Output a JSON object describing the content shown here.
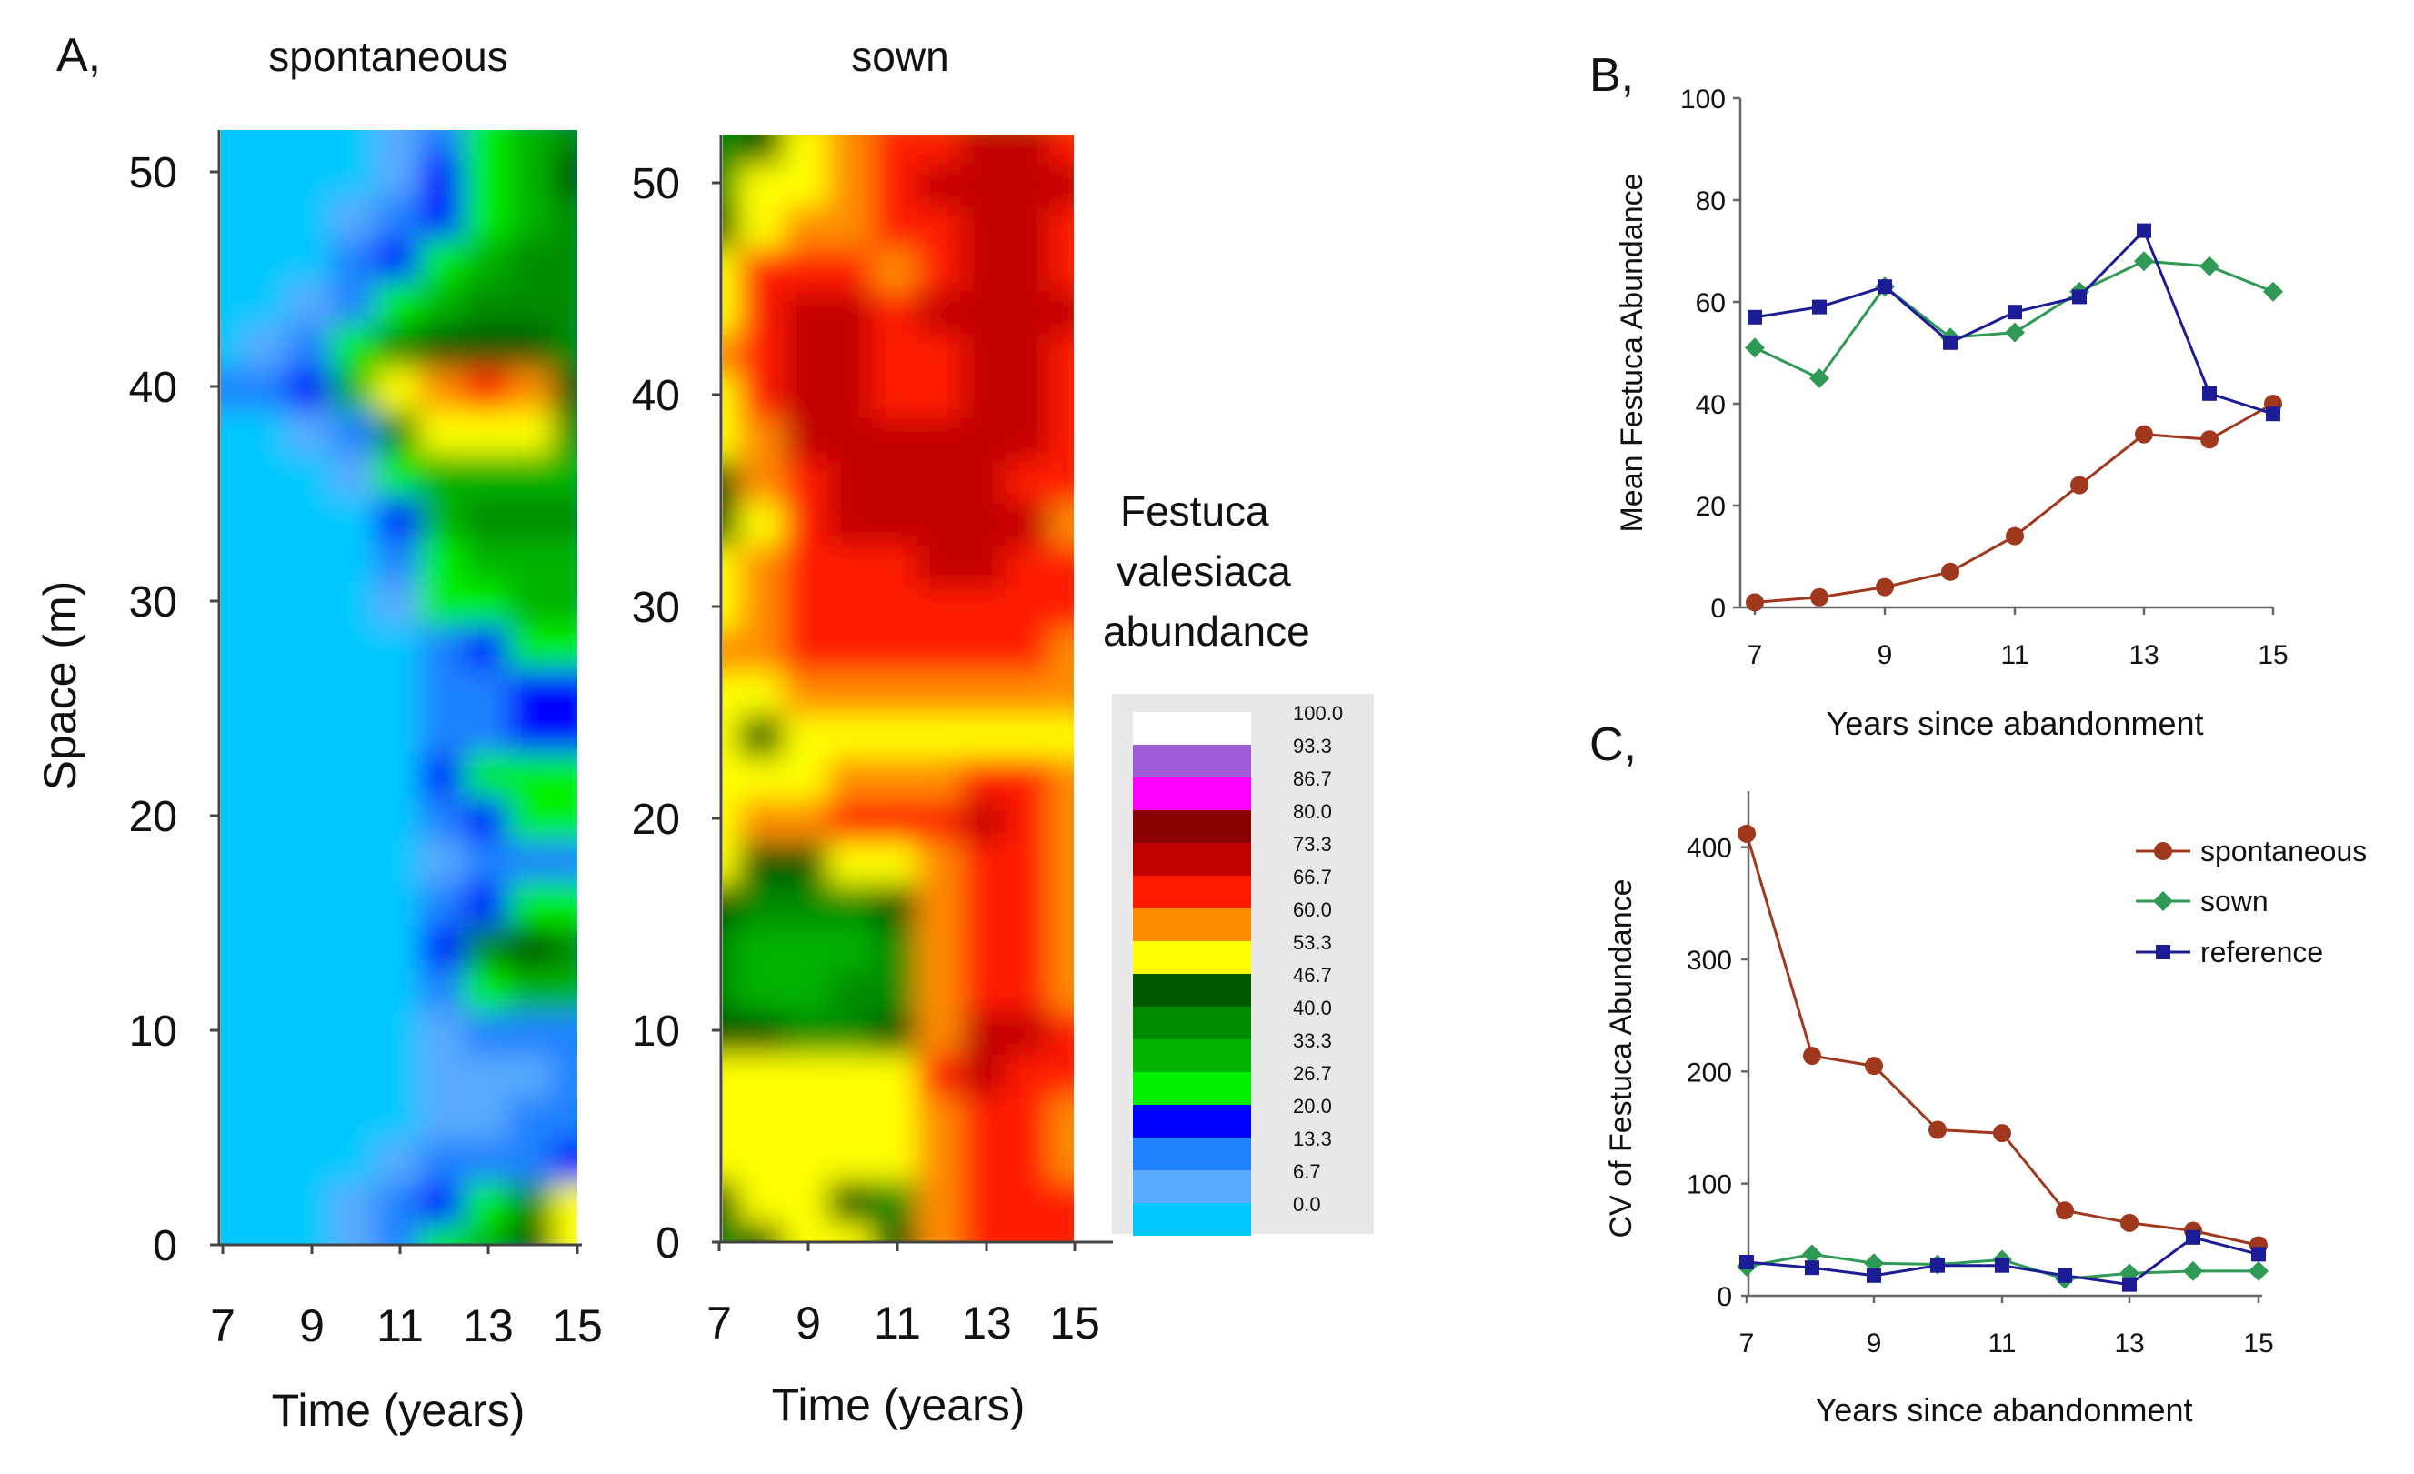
{
  "figure": {
    "panel_labels": {
      "a": "A,",
      "b": "B,",
      "c": "C,"
    },
    "heatmap_titles": {
      "spontaneous": "spontaneous",
      "sown": "sown"
    }
  },
  "colorbar": {
    "title_lines": [
      "Festuca",
      "valesiaca",
      "abundance"
    ],
    "ticks": [
      "100.0",
      "93.3",
      "86.7",
      "80.0",
      "73.3",
      "66.7",
      "60.0",
      "53.3",
      "46.7",
      "40.0",
      "33.3",
      "26.7",
      "20.0",
      "13.3",
      "6.7",
      "0.0"
    ],
    "colors": [
      "#ffffff",
      "#a05cd6",
      "#ff00ff",
      "#8b0000",
      "#c20000",
      "#ff1a00",
      "#ff8c00",
      "#ffff00",
      "#005a00",
      "#008c00",
      "#00b400",
      "#00f000",
      "#0000ff",
      "#1e82ff",
      "#5aaaff",
      "#00c8ff"
    ]
  },
  "chart_data": [
    {
      "type": "heatmap",
      "title": "spontaneous",
      "xlabel": "Time (years)",
      "ylabel": "Space (m)",
      "x_ticks": [
        "7",
        "9",
        "11",
        "13",
        "15"
      ],
      "y_ticks": [
        "0",
        "10",
        "20",
        "30",
        "40",
        "50"
      ],
      "xlim": [
        7,
        15
      ],
      "ylim": [
        0,
        52
      ],
      "value_range": [
        0,
        100
      ],
      "x": [
        7,
        8,
        9,
        10,
        11,
        12,
        13,
        14,
        15
      ],
      "y": [
        0,
        2,
        4,
        6,
        8,
        10,
        12,
        14,
        16,
        18,
        20,
        22,
        24,
        26,
        28,
        30,
        32,
        34,
        36,
        38,
        40,
        42,
        44,
        46,
        48,
        50,
        52
      ],
      "values": [
        [
          0,
          0,
          3,
          10,
          18,
          26,
          35,
          48,
          55
        ],
        [
          0,
          0,
          2,
          8,
          15,
          22,
          30,
          40,
          50
        ],
        [
          0,
          0,
          0,
          5,
          12,
          15,
          16,
          18,
          22
        ],
        [
          0,
          0,
          0,
          0,
          4,
          10,
          12,
          14,
          16
        ],
        [
          0,
          0,
          0,
          0,
          3,
          8,
          10,
          12,
          15
        ],
        [
          0,
          0,
          0,
          0,
          3,
          10,
          14,
          15,
          18
        ],
        [
          0,
          0,
          0,
          0,
          5,
          18,
          30,
          35,
          35
        ],
        [
          0,
          0,
          0,
          0,
          6,
          22,
          40,
          45,
          42
        ],
        [
          0,
          0,
          0,
          0,
          4,
          15,
          22,
          25,
          25
        ],
        [
          0,
          0,
          0,
          0,
          3,
          12,
          16,
          16,
          18
        ],
        [
          0,
          0,
          0,
          0,
          4,
          16,
          24,
          26,
          25
        ],
        [
          0,
          0,
          0,
          0,
          5,
          20,
          28,
          30,
          30
        ],
        [
          0,
          0,
          0,
          0,
          4,
          14,
          18,
          22,
          24
        ],
        [
          0,
          0,
          0,
          0,
          3,
          13,
          17,
          20,
          22
        ],
        [
          0,
          0,
          0,
          0,
          5,
          18,
          24,
          26,
          26
        ],
        [
          0,
          0,
          0,
          3,
          12,
          25,
          30,
          32,
          32
        ],
        [
          0,
          0,
          0,
          4,
          16,
          30,
          34,
          36,
          35
        ],
        [
          0,
          0,
          0,
          5,
          22,
          36,
          40,
          40,
          38
        ],
        [
          0,
          0,
          2,
          10,
          25,
          35,
          37,
          35,
          32
        ],
        [
          0,
          2,
          8,
          18,
          40,
          52,
          55,
          50,
          40
        ],
        [
          14,
          14,
          22,
          35,
          54,
          62,
          63,
          58,
          45
        ],
        [
          0,
          8,
          16,
          26,
          38,
          45,
          48,
          45,
          40
        ],
        [
          0,
          3,
          10,
          18,
          26,
          34,
          40,
          42,
          40
        ],
        [
          0,
          0,
          4,
          13,
          22,
          28,
          32,
          38,
          38
        ],
        [
          0,
          0,
          2,
          9,
          17,
          23,
          28,
          35,
          40
        ],
        [
          0,
          0,
          0,
          5,
          12,
          19,
          28,
          36,
          45
        ],
        [
          0,
          0,
          0,
          3,
          8,
          16,
          26,
          34,
          42
        ]
      ]
    },
    {
      "type": "heatmap",
      "title": "sown",
      "xlabel": "Time (years)",
      "x_ticks": [
        "7",
        "9",
        "11",
        "13",
        "15"
      ],
      "y_ticks": [
        "0",
        "10",
        "20",
        "30",
        "40",
        "50"
      ],
      "xlim": [
        7,
        15
      ],
      "ylim": [
        0,
        52
      ],
      "value_range": [
        0,
        100
      ],
      "x": [
        7,
        8,
        9,
        10,
        11,
        12,
        13,
        14,
        15
      ],
      "y": [
        0,
        2,
        4,
        6,
        8,
        10,
        12,
        14,
        16,
        18,
        20,
        22,
        24,
        26,
        28,
        30,
        32,
        34,
        36,
        38,
        40,
        42,
        44,
        46,
        48,
        50,
        52
      ],
      "values": [
        [
          42,
          48,
          52,
          50,
          46,
          62,
          65,
          64,
          66
        ],
        [
          44,
          50,
          52,
          48,
          43,
          60,
          66,
          66,
          64
        ],
        [
          50,
          52,
          55,
          54,
          52,
          62,
          67,
          66,
          62
        ],
        [
          50,
          50,
          55,
          54,
          55,
          62,
          68,
          67,
          62
        ],
        [
          52,
          50,
          52,
          53,
          53,
          64,
          70,
          68,
          64
        ],
        [
          46,
          44,
          40,
          42,
          46,
          62,
          70,
          70,
          66
        ],
        [
          42,
          37,
          36,
          38,
          42,
          60,
          68,
          68,
          62
        ],
        [
          42,
          36,
          35,
          37,
          42,
          58,
          66,
          66,
          58
        ],
        [
          44,
          38,
          38,
          40,
          44,
          58,
          66,
          66,
          58
        ],
        [
          50,
          47,
          48,
          50,
          52,
          60,
          67,
          66,
          60
        ],
        [
          56,
          58,
          62,
          64,
          64,
          67,
          70,
          67,
          62
        ],
        [
          54,
          56,
          56,
          58,
          58,
          62,
          64,
          63,
          58
        ],
        [
          50,
          46,
          50,
          50,
          52,
          54,
          54,
          54,
          52
        ],
        [
          56,
          52,
          58,
          62,
          62,
          60,
          62,
          60,
          58
        ],
        [
          58,
          60,
          64,
          66,
          66,
          66,
          66,
          66,
          62
        ],
        [
          56,
          62,
          66,
          68,
          68,
          68,
          68,
          67,
          64
        ],
        [
          52,
          60,
          66,
          68,
          68,
          70,
          70,
          68,
          64
        ],
        [
          46,
          56,
          66,
          70,
          72,
          74,
          74,
          70,
          62
        ],
        [
          48,
          58,
          68,
          70,
          70,
          70,
          70,
          68,
          64
        ],
        [
          52,
          62,
          70,
          72,
          70,
          70,
          72,
          70,
          66
        ],
        [
          54,
          64,
          70,
          70,
          68,
          68,
          74,
          72,
          68
        ],
        [
          58,
          68,
          72,
          70,
          64,
          68,
          74,
          72,
          68
        ],
        [
          56,
          66,
          74,
          70,
          66,
          70,
          74,
          72,
          70
        ],
        [
          56,
          64,
          68,
          66,
          62,
          68,
          72,
          70,
          68
        ],
        [
          46,
          56,
          58,
          60,
          64,
          68,
          72,
          70,
          66
        ],
        [
          42,
          50,
          54,
          60,
          66,
          70,
          72,
          72,
          70
        ],
        [
          38,
          46,
          52,
          58,
          64,
          68,
          70,
          70,
          68
        ]
      ]
    },
    {
      "type": "line",
      "xlabel": "Years since abandonment",
      "ylabel": "Mean Festuca Abundance",
      "x": [
        7,
        8,
        9,
        10,
        11,
        12,
        13,
        14,
        15
      ],
      "x_ticks": [
        "7",
        "9",
        "11",
        "13",
        "15"
      ],
      "y_ticks": [
        "0",
        "20",
        "40",
        "60",
        "80",
        "100"
      ],
      "xlim": [
        7,
        15
      ],
      "ylim": [
        0,
        100
      ],
      "grid": false,
      "series": [
        {
          "name": "spontaneous",
          "color": "#a0381e",
          "marker": "circle",
          "values": [
            1,
            2,
            4,
            7,
            14,
            24,
            34,
            33,
            40
          ]
        },
        {
          "name": "sown",
          "color": "#2e9a55",
          "marker": "diamond",
          "values": [
            51,
            45,
            63,
            53,
            54,
            62,
            68,
            67,
            62
          ]
        },
        {
          "name": "reference",
          "color": "#1c1c96",
          "marker": "square",
          "values": [
            57,
            59,
            63,
            52,
            58,
            61,
            74,
            42,
            38
          ]
        }
      ]
    },
    {
      "type": "line",
      "xlabel": "Years since abandonment",
      "ylabel": "CV of Festuca Abundance",
      "x": [
        7,
        8,
        9,
        10,
        11,
        12,
        13,
        14,
        15
      ],
      "x_ticks": [
        "7",
        "9",
        "11",
        "13",
        "15"
      ],
      "y_ticks": [
        "0",
        "100",
        "200",
        "300",
        "400"
      ],
      "xlim": [
        7,
        15
      ],
      "ylim": [
        0,
        450
      ],
      "grid": false,
      "legend": {
        "placement": "top-right",
        "entries": [
          "spontaneous",
          "sown",
          "reference"
        ]
      },
      "series": [
        {
          "name": "spontaneous",
          "color": "#a0381e",
          "marker": "circle",
          "values": [
            412,
            214,
            205,
            148,
            145,
            76,
            65,
            58,
            45
          ]
        },
        {
          "name": "sown",
          "color": "#2e9a55",
          "marker": "diamond",
          "values": [
            26,
            37,
            29,
            28,
            32,
            15,
            20,
            22,
            22
          ]
        },
        {
          "name": "reference",
          "color": "#1c1c96",
          "marker": "square",
          "values": [
            30,
            25,
            18,
            27,
            27,
            18,
            10,
            52,
            37
          ]
        }
      ]
    }
  ]
}
